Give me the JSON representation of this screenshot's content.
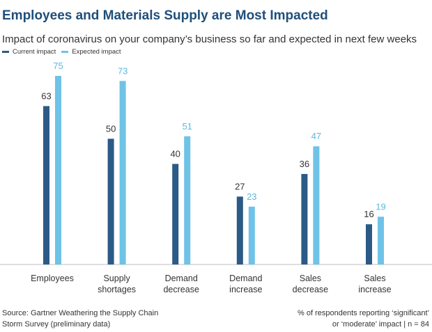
{
  "header": {
    "title": "Employees and Materials Supply are Most Impacted",
    "subtitle": "Impact of coronavirus on your company’s business so far and expected in next few weeks"
  },
  "footer": {
    "source_line1": "Source: Gartner Weathering the Supply Chain",
    "source_line2": "Storm Survey (preliminary data)",
    "note_line1": "% of respondents reporting ‘significant’",
    "note_line2": "or ‘moderate’ impact | n = 84"
  },
  "chart_data": {
    "type": "bar",
    "title": "Employees and Materials Supply are Most Impacted",
    "subtitle": "Impact of coronavirus on your company’s business so far and expected in next few weeks",
    "categories": [
      [
        "Employees"
      ],
      [
        "Supply",
        "shortages"
      ],
      [
        "Demand",
        "decrease"
      ],
      [
        "Demand",
        "increase"
      ],
      [
        "Sales",
        "decrease"
      ],
      [
        "Sales",
        "increase"
      ]
    ],
    "series": [
      {
        "name": "Current impact",
        "color": "#2b5a86",
        "label_color": "#333333",
        "values": [
          63,
          50,
          40,
          27,
          36,
          16
        ]
      },
      {
        "name": "Expected impact",
        "color": "#6ec3e6",
        "label_color": "#5bb8e0",
        "values": [
          75,
          73,
          51,
          23,
          47,
          19
        ]
      }
    ],
    "ylim": [
      0,
      80
    ],
    "grid": false,
    "legend": "top-left"
  }
}
